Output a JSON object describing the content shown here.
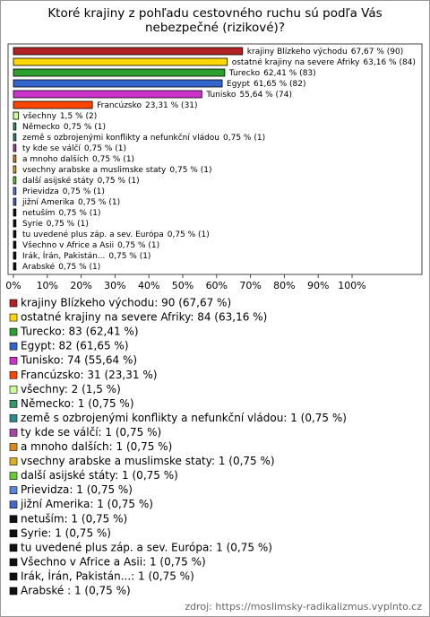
{
  "chart_data": {
    "type": "hbar",
    "title": "Ktoré krajiny z pohľadu cestovného ruchu sú podľa Vás nebezpečné (rizikové)?",
    "categories": [
      "krajiny Blízkeho východu",
      "ostatné krajiny na severe Afriky",
      "Turecko",
      "Egypt",
      "Tunisko",
      "Francúzsko",
      "všechny",
      "Německo",
      "země s ozbrojenými konflikty a nefunkční vládou",
      "ty kde se válčí",
      "a mnoho dalších",
      "vsechny arabske a muslimske staty",
      "další asijské státy",
      "Prievidza",
      "jižní Amerika",
      "netuším",
      "Syrie",
      "tu uvedené plus záp. a sev. Európa",
      "Všechno v Africe a Asii",
      "Irák, Írán, Pakistán...",
      "Arabské"
    ],
    "values": [
      67.67,
      63.16,
      62.41,
      61.65,
      55.64,
      23.31,
      1.5,
      0.75,
      0.75,
      0.75,
      0.75,
      0.75,
      0.75,
      0.75,
      0.75,
      0.75,
      0.75,
      0.75,
      0.75,
      0.75,
      0.75
    ],
    "value_labels": [
      "67,67 % (90)",
      "63,16 % (84)",
      "62,41 % (83)",
      "61,65 % (82)",
      "55,64 % (74)",
      "23,31 % (31)",
      "1,5 % (2)",
      "0,75 % (1)",
      "0,75 % (1)",
      "0,75 % (1)",
      "0,75 % (1)",
      "0,75 % (1)",
      "0,75 % (1)",
      "0,75 % (1)",
      "0,75 % (1)",
      "0,75 % (1)",
      "0,75 % (1)",
      "0,75 % (1)",
      "0,75 % (1)",
      "0,75 % (1)",
      "0,75 % (1)"
    ],
    "colors": [
      "#b22222",
      "#ffd700",
      "#2ca02c",
      "#3366cc",
      "#cc33cc",
      "#ff4500",
      "#ccff99",
      "#339966",
      "#2e8b8b",
      "#aa44aa",
      "#e08a1e",
      "#e0b020",
      "#66cc33",
      "#5588dd",
      "#4466cc",
      "#111111",
      "#111111",
      "#111111",
      "#111111",
      "#111111",
      "#111111"
    ],
    "legend": [
      "krajiny Blízkeho východu: 90 (67,67 %)",
      "ostatné krajiny na severe Afriky: 84 (63,16 %)",
      "Turecko: 83 (62,41 %)",
      "Egypt: 82 (61,65 %)",
      "Tunisko: 74 (55,64 %)",
      "Francúzsko: 31 (23,31 %)",
      "všechny: 2 (1,5 %)",
      "Německo: 1 (0,75 %)",
      "země s ozbrojenými konflikty a nefunkční vládou: 1 (0,75 %)",
      "ty kde se válčí: 1 (0,75 %)",
      "a mnoho dalších: 1 (0,75 %)",
      "vsechny arabske a muslimske staty: 1 (0,75 %)",
      "další asijské státy: 1 (0,75 %)",
      "Prievidza: 1 (0,75 %)",
      "jižní Amerika: 1 (0,75 %)",
      "netuším: 1 (0,75 %)",
      "Syrie: 1 (0,75 %)",
      "tu uvedené plus záp. a sev. Európa: 1 (0,75 %)",
      "Všechno v Africe a Asii: 1 (0,75 %)",
      "Irák, Írán, Pakistán...: 1 (0,75 %)",
      "Arabské : 1 (0,75 %)"
    ],
    "xlim": [
      0,
      100
    ],
    "xticks": [
      {
        "value": 0,
        "label": "0%"
      },
      {
        "value": 10,
        "label": "10%"
      },
      {
        "value": 20,
        "label": "20%"
      },
      {
        "value": 30,
        "label": "30%"
      },
      {
        "value": 40,
        "label": "40%"
      },
      {
        "value": 50,
        "label": "50%"
      },
      {
        "value": 60,
        "label": "60%"
      },
      {
        "value": 70,
        "label": "70%"
      },
      {
        "value": 80,
        "label": "80%"
      },
      {
        "value": 90,
        "label": "90%"
      },
      {
        "value": 100,
        "label": "100%"
      }
    ],
    "source": "zdroj: https://moslimsky-radikalizmus.vyplnto.cz"
  }
}
